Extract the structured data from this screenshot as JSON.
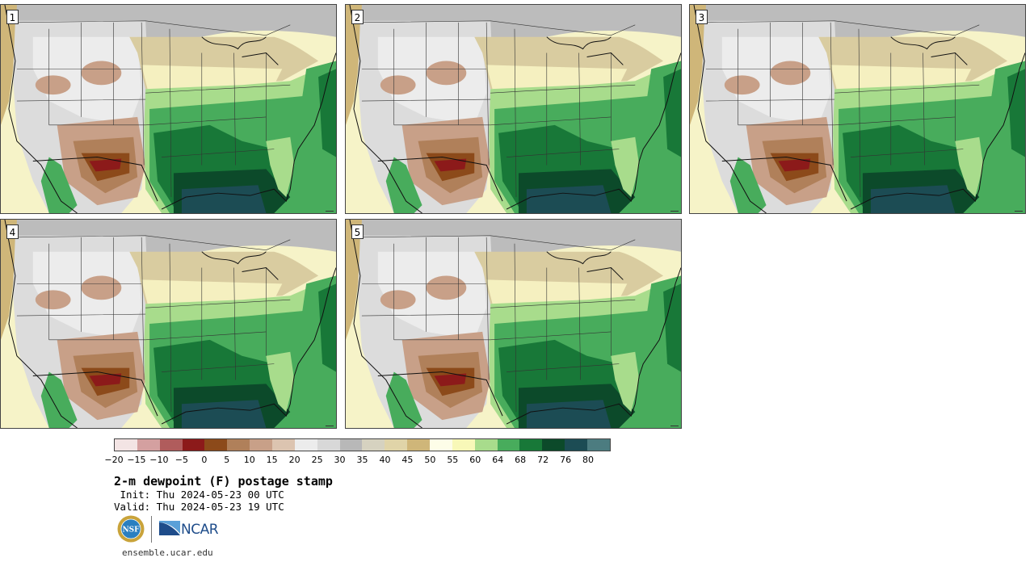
{
  "panels": [
    {
      "label": "1"
    },
    {
      "label": "2"
    },
    {
      "label": "3"
    },
    {
      "label": "4"
    },
    {
      "label": "5"
    }
  ],
  "colorbar": {
    "colors": [
      "#f3e4e4",
      "#d4a0a0",
      "#b05c5c",
      "#8c1a1a",
      "#8c4a1a",
      "#b0805a",
      "#c8a088",
      "#dcc4b0",
      "#ececec",
      "#d8d8d8",
      "#b8b8b8",
      "#d6d2c0",
      "#e0d4a8",
      "#cfb679",
      "#fdfde8",
      "#f8f8b8",
      "#a8dc8c",
      "#48ac5c",
      "#187838",
      "#0c4a2a",
      "#1c4c54",
      "#4c7c80"
    ],
    "tick_labels": [
      "−20",
      "−15",
      "−10",
      "−5",
      "0",
      "5",
      "10",
      "15",
      "20",
      "25",
      "30",
      "35",
      "40",
      "45",
      "50",
      "55",
      "60",
      "64",
      "68",
      "72",
      "76",
      "80"
    ]
  },
  "title": "2-m dewpoint (F) postage stamp",
  "init": " Init: Thu 2024-05-23 00 UTC",
  "valid": "Valid: Thu 2024-05-23 19 UTC",
  "logos": {
    "nsf": "NSF",
    "ncar": "NCAR"
  },
  "url": "ensemble.ucar.edu"
}
